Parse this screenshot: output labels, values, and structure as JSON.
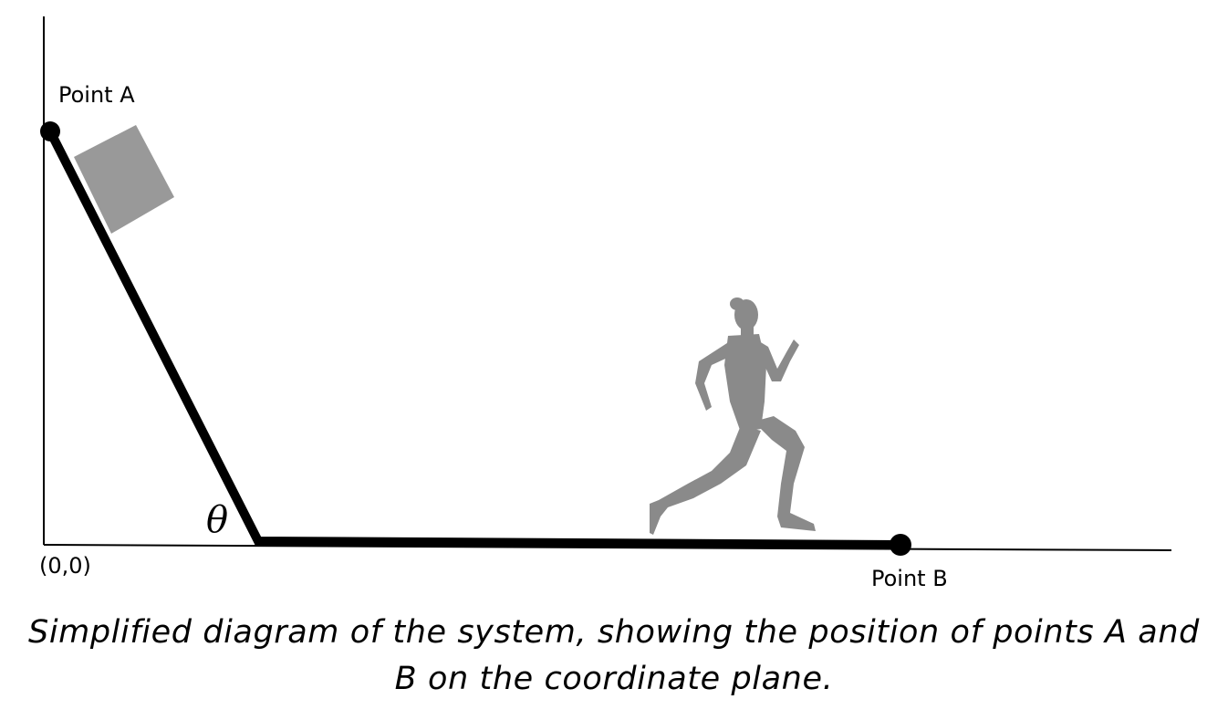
{
  "diagram": {
    "point_a": {
      "label": "Point A"
    },
    "point_b": {
      "label": "Point B"
    },
    "origin": {
      "label": "(0,0)"
    },
    "angle": {
      "symbol": "θ"
    },
    "caption_lines": [
      "Simplified diagram of the system, showing the position of points A and",
      "B on the coordinate plane."
    ],
    "colors": {
      "track": "#000000",
      "block": "#999999",
      "runner": "#8a8a8a",
      "axes": "#000000"
    },
    "icons": {
      "block": "gray-square-block",
      "runner": "running-person-silhouette"
    }
  }
}
